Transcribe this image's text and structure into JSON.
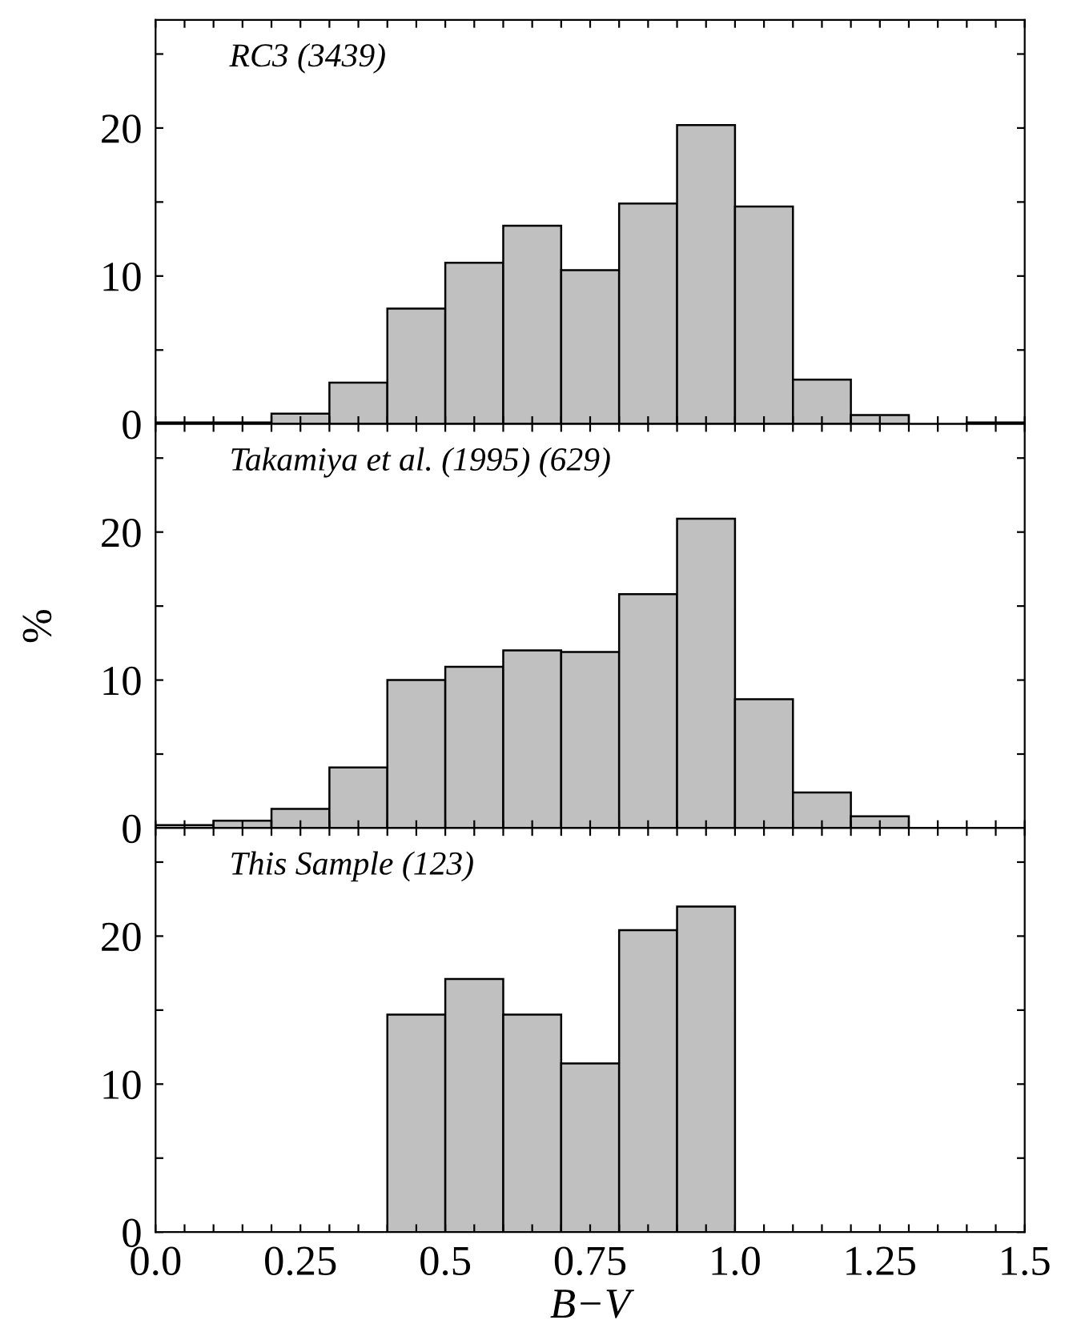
{
  "chart_data": [
    {
      "type": "histogram",
      "bins": [
        0.0,
        0.1,
        0.2,
        0.3,
        0.4,
        0.5,
        0.6,
        0.7,
        0.8,
        0.9,
        1.0,
        1.1,
        1.2,
        1.3,
        1.4,
        1.5
      ],
      "values": [
        0.1,
        0.1,
        0.7,
        2.8,
        7.8,
        10.9,
        13.4,
        10.4,
        14.9,
        20.2,
        14.7,
        3.0,
        0.6,
        0,
        0.1
      ],
      "color": "#c0c0c0",
      "annotations": [
        "RC3 (3439)"
      ],
      "xlim": [
        0,
        1.5
      ],
      "ylim": [
        0,
        27.3
      ],
      "xticks": [
        0,
        {
          "value": 0.05,
          "label": null
        },
        {
          "value": 0.1,
          "label": null
        },
        {
          "value": 0.15,
          "label": null
        },
        {
          "value": 0.2,
          "label": null
        },
        0.25,
        {
          "value": 0.3,
          "label": null
        },
        {
          "value": 0.35,
          "label": null
        },
        {
          "value": 0.4,
          "label": null
        },
        {
          "value": 0.45,
          "label": null
        },
        0.5,
        {
          "value": 0.55,
          "label": null
        },
        {
          "value": 0.6,
          "label": null
        },
        {
          "value": 0.65,
          "label": null
        },
        {
          "value": 0.7,
          "label": null
        },
        0.75,
        {
          "value": 0.8,
          "label": null
        },
        {
          "value": 0.85,
          "label": null
        },
        {
          "value": 0.9,
          "label": null
        },
        {
          "value": 0.95,
          "label": null
        },
        1.0,
        {
          "value": 1.05,
          "label": null
        },
        {
          "value": 1.1,
          "label": null
        },
        {
          "value": 1.15,
          "label": null
        },
        {
          "value": 1.2,
          "label": null
        },
        1.25,
        {
          "value": 1.3,
          "label": null
        },
        {
          "value": 1.35,
          "label": null
        },
        {
          "value": 1.4,
          "label": null
        },
        {
          "value": 1.45,
          "label": null
        },
        1.5
      ],
      "yticks": [
        0,
        {
          "value": 5,
          "label": null
        },
        10,
        {
          "value": 15,
          "label": null
        },
        20,
        {
          "value": 25,
          "label": null
        }
      ],
      "tick_labels": "y"
    },
    {
      "type": "histogram",
      "bins": [
        0.0,
        0.1,
        0.2,
        0.3,
        0.4,
        0.5,
        0.6,
        0.7,
        0.8,
        0.9,
        1.0,
        1.1,
        1.2,
        1.3,
        1.4,
        1.5
      ],
      "values": [
        0.2,
        0.5,
        1.3,
        4.1,
        10.0,
        10.9,
        12.0,
        11.9,
        15.8,
        20.9,
        8.7,
        2.4,
        0.8,
        0,
        0
      ],
      "color": "#c0c0c0",
      "annotations": [
        "Takamiya et al. (1995) (629)"
      ],
      "ylabel": "%",
      "xlim": [
        0,
        1.5
      ],
      "ylim": [
        0,
        27.3
      ],
      "xticks": [
        0,
        {
          "value": 0.05,
          "label": null
        },
        {
          "value": 0.1,
          "label": null
        },
        {
          "value": 0.15,
          "label": null
        },
        {
          "value": 0.2,
          "label": null
        },
        0.25,
        {
          "value": 0.3,
          "label": null
        },
        {
          "value": 0.35,
          "label": null
        },
        {
          "value": 0.4,
          "label": null
        },
        {
          "value": 0.45,
          "label": null
        },
        0.5,
        {
          "value": 0.55,
          "label": null
        },
        {
          "value": 0.6,
          "label": null
        },
        {
          "value": 0.65,
          "label": null
        },
        {
          "value": 0.7,
          "label": null
        },
        0.75,
        {
          "value": 0.8,
          "label": null
        },
        {
          "value": 0.85,
          "label": null
        },
        {
          "value": 0.9,
          "label": null
        },
        {
          "value": 0.95,
          "label": null
        },
        1.0,
        {
          "value": 1.05,
          "label": null
        },
        {
          "value": 1.1,
          "label": null
        },
        {
          "value": 1.15,
          "label": null
        },
        {
          "value": 1.2,
          "label": null
        },
        1.25,
        {
          "value": 1.3,
          "label": null
        },
        {
          "value": 1.35,
          "label": null
        },
        {
          "value": 1.4,
          "label": null
        },
        {
          "value": 1.45,
          "label": null
        },
        1.5
      ],
      "yticks": [
        0,
        {
          "value": 5,
          "label": null
        },
        10,
        {
          "value": 15,
          "label": null
        },
        20,
        {
          "value": 25,
          "label": null
        }
      ],
      "tick_labels": "y"
    },
    {
      "type": "histogram",
      "bins": [
        0.0,
        0.1,
        0.2,
        0.3,
        0.4,
        0.5,
        0.6,
        0.7,
        0.8,
        0.9,
        1.0,
        1.1,
        1.2,
        1.3,
        1.4,
        1.5
      ],
      "values": [
        0,
        0,
        0,
        0,
        14.7,
        17.1,
        14.7,
        11.4,
        20.4,
        22.0,
        0,
        0,
        0,
        0,
        0
      ],
      "color": "#c0c0c0",
      "annotations": [
        "This Sample (123)"
      ],
      "xlabel": "B−V",
      "xlim": [
        0,
        1.5
      ],
      "ylim": [
        0,
        27.3
      ],
      "xticks": [
        {
          "value": 0,
          "label": "0.0"
        },
        {
          "value": 0.05,
          "label": null
        },
        {
          "value": 0.1,
          "label": null
        },
        {
          "value": 0.15,
          "label": null
        },
        {
          "value": 0.2,
          "label": null
        },
        {
          "value": 0.25,
          "label": "0.25"
        },
        {
          "value": 0.3,
          "label": null
        },
        {
          "value": 0.35,
          "label": null
        },
        {
          "value": 0.4,
          "label": null
        },
        {
          "value": 0.45,
          "label": null
        },
        {
          "value": 0.5,
          "label": "0.5"
        },
        {
          "value": 0.55,
          "label": null
        },
        {
          "value": 0.6,
          "label": null
        },
        {
          "value": 0.65,
          "label": null
        },
        {
          "value": 0.7,
          "label": null
        },
        {
          "value": 0.75,
          "label": "0.75"
        },
        {
          "value": 0.8,
          "label": null
        },
        {
          "value": 0.85,
          "label": null
        },
        {
          "value": 0.9,
          "label": null
        },
        {
          "value": 0.95,
          "label": null
        },
        {
          "value": 1.0,
          "label": "1.0"
        },
        {
          "value": 1.05,
          "label": null
        },
        {
          "value": 1.1,
          "label": null
        },
        {
          "value": 1.15,
          "label": null
        },
        {
          "value": 1.2,
          "label": null
        },
        {
          "value": 1.25,
          "label": "1.25"
        },
        {
          "value": 1.3,
          "label": null
        },
        {
          "value": 1.35,
          "label": null
        },
        {
          "value": 1.4,
          "label": null
        },
        {
          "value": 1.45,
          "label": null
        },
        {
          "value": 1.5,
          "label": "1.5"
        }
      ],
      "yticks": [
        0,
        {
          "value": 5,
          "label": null
        },
        10,
        {
          "value": 15,
          "label": null
        },
        20,
        {
          "value": 25,
          "label": null
        }
      ]
    }
  ]
}
